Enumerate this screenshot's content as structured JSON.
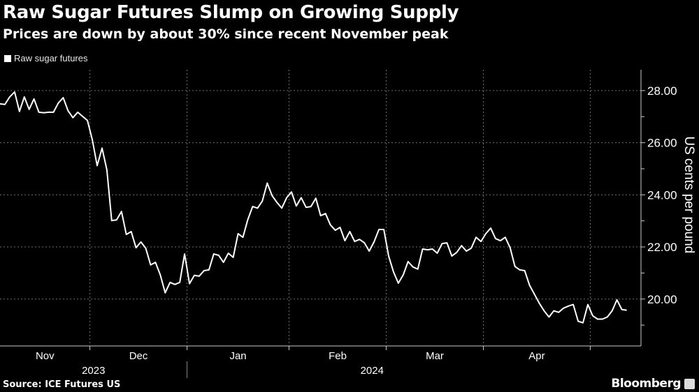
{
  "header": {
    "title": "Raw Sugar Futures Slump on Growing Supply",
    "subtitle": "Prices are down by about 30% since recent November peak"
  },
  "footer": {
    "source": "Source: ICE Futures US",
    "brand": "Bloomberg"
  },
  "colors": {
    "background": "#000000",
    "line": "#ffffff",
    "grid": "#6e6e6e",
    "text": "#ffffff"
  },
  "chart_data": {
    "type": "line",
    "title": "Raw Sugar Futures Slump on Growing Supply",
    "subtitle": "Prices are down by about 30% since recent November peak",
    "ylabel": "US cents per pound",
    "xlabel": "",
    "ylim": [
      18.2,
      28.8
    ],
    "y_axis_side": "right",
    "yticks": [
      "20.00",
      "22.00",
      "24.00",
      "26.00",
      "28.00"
    ],
    "x_month_labels": [
      "Nov",
      "Dec",
      "Jan",
      "Feb",
      "Mar",
      "Apr"
    ],
    "x_year_labels": [
      "2023",
      "2024"
    ],
    "grid": true,
    "legend_position": "top-left",
    "series": [
      {
        "name": "Raw sugar futures",
        "points": [
          [
            "2023-11-03",
            27.49
          ],
          [
            "2023-11-06",
            27.47
          ],
          [
            "2023-11-07",
            27.76
          ],
          [
            "2023-11-08",
            27.95
          ],
          [
            "2023-11-09",
            27.2
          ],
          [
            "2023-11-10",
            27.76
          ],
          [
            "2023-11-13",
            27.28
          ],
          [
            "2023-11-14",
            27.68
          ],
          [
            "2023-11-15",
            27.17
          ],
          [
            "2023-11-16",
            27.15
          ],
          [
            "2023-11-17",
            27.17
          ],
          [
            "2023-11-20",
            27.17
          ],
          [
            "2023-11-21",
            27.52
          ],
          [
            "2023-11-22",
            27.73
          ],
          [
            "2023-11-24",
            27.23
          ],
          [
            "2023-11-27",
            26.96
          ],
          [
            "2023-11-28",
            27.17
          ],
          [
            "2023-11-29",
            27.01
          ],
          [
            "2023-11-30",
            26.85
          ],
          [
            "2023-12-01",
            26.11
          ],
          [
            "2023-12-04",
            25.12
          ],
          [
            "2023-12-05",
            25.79
          ],
          [
            "2023-12-06",
            24.96
          ],
          [
            "2023-12-07",
            23.01
          ],
          [
            "2023-12-08",
            23.04
          ],
          [
            "2023-12-11",
            23.36
          ],
          [
            "2023-12-12",
            22.48
          ],
          [
            "2023-12-13",
            22.59
          ],
          [
            "2023-12-14",
            21.97
          ],
          [
            "2023-12-15",
            22.19
          ],
          [
            "2023-12-18",
            21.95
          ],
          [
            "2023-12-19",
            21.31
          ],
          [
            "2023-12-20",
            21.41
          ],
          [
            "2023-12-21",
            20.93
          ],
          [
            "2023-12-22",
            20.24
          ],
          [
            "2023-12-26",
            20.64
          ],
          [
            "2023-12-27",
            20.56
          ],
          [
            "2023-12-28",
            20.64
          ],
          [
            "2023-12-29",
            21.73
          ],
          [
            "2024-01-02",
            20.59
          ],
          [
            "2024-01-03",
            20.91
          ],
          [
            "2024-01-04",
            20.88
          ],
          [
            "2024-01-05",
            21.09
          ],
          [
            "2024-01-08",
            21.12
          ],
          [
            "2024-01-09",
            21.73
          ],
          [
            "2024-01-10",
            21.68
          ],
          [
            "2024-01-11",
            21.41
          ],
          [
            "2024-01-12",
            21.76
          ],
          [
            "2024-01-16",
            21.6
          ],
          [
            "2024-01-17",
            22.51
          ],
          [
            "2024-01-18",
            22.37
          ],
          [
            "2024-01-19",
            23.04
          ],
          [
            "2024-01-22",
            23.55
          ],
          [
            "2024-01-23",
            23.49
          ],
          [
            "2024-01-24",
            23.76
          ],
          [
            "2024-01-25",
            24.45
          ],
          [
            "2024-01-26",
            23.97
          ],
          [
            "2024-01-29",
            23.71
          ],
          [
            "2024-01-30",
            23.49
          ],
          [
            "2024-01-31",
            23.89
          ],
          [
            "2024-02-01",
            24.11
          ],
          [
            "2024-02-02",
            23.57
          ],
          [
            "2024-02-05",
            23.89
          ],
          [
            "2024-02-06",
            23.52
          ],
          [
            "2024-02-07",
            23.55
          ],
          [
            "2024-02-08",
            23.87
          ],
          [
            "2024-02-09",
            23.2
          ],
          [
            "2024-02-12",
            23.28
          ],
          [
            "2024-02-13",
            22.85
          ],
          [
            "2024-02-14",
            22.64
          ],
          [
            "2024-02-15",
            22.75
          ],
          [
            "2024-02-16",
            22.24
          ],
          [
            "2024-02-20",
            22.59
          ],
          [
            "2024-02-21",
            22.21
          ],
          [
            "2024-02-22",
            22.29
          ],
          [
            "2024-02-23",
            22.16
          ],
          [
            "2024-02-26",
            21.84
          ],
          [
            "2024-02-27",
            22.19
          ],
          [
            "2024-02-28",
            22.67
          ],
          [
            "2024-02-29",
            22.67
          ],
          [
            "2024-03-01",
            21.65
          ],
          [
            "2024-03-04",
            21.04
          ],
          [
            "2024-03-05",
            20.61
          ],
          [
            "2024-03-06",
            20.93
          ],
          [
            "2024-03-07",
            21.44
          ],
          [
            "2024-03-08",
            21.23
          ],
          [
            "2024-03-11",
            21.15
          ],
          [
            "2024-03-12",
            21.92
          ],
          [
            "2024-03-13",
            21.89
          ],
          [
            "2024-03-14",
            21.92
          ],
          [
            "2024-03-15",
            21.76
          ],
          [
            "2024-03-18",
            22.13
          ],
          [
            "2024-03-19",
            22.16
          ],
          [
            "2024-03-20",
            21.65
          ],
          [
            "2024-03-21",
            21.79
          ],
          [
            "2024-03-22",
            22.05
          ],
          [
            "2024-03-25",
            21.84
          ],
          [
            "2024-03-26",
            21.95
          ],
          [
            "2024-03-27",
            22.37
          ],
          [
            "2024-03-28",
            22.21
          ],
          [
            "2024-04-01",
            22.51
          ],
          [
            "2024-04-02",
            22.72
          ],
          [
            "2024-04-03",
            22.32
          ],
          [
            "2024-04-04",
            22.24
          ],
          [
            "2024-04-05",
            22.37
          ],
          [
            "2024-04-08",
            21.97
          ],
          [
            "2024-04-09",
            21.25
          ],
          [
            "2024-04-10",
            21.12
          ],
          [
            "2024-04-11",
            21.09
          ],
          [
            "2024-04-12",
            20.53
          ],
          [
            "2024-04-15",
            20.19
          ],
          [
            "2024-04-16",
            19.84
          ],
          [
            "2024-04-17",
            19.55
          ],
          [
            "2024-04-18",
            19.31
          ],
          [
            "2024-04-19",
            19.55
          ],
          [
            "2024-04-22",
            19.49
          ],
          [
            "2024-04-23",
            19.65
          ],
          [
            "2024-04-24",
            19.73
          ],
          [
            "2024-04-25",
            19.79
          ],
          [
            "2024-04-26",
            19.15
          ],
          [
            "2024-04-29",
            19.09
          ],
          [
            "2024-04-30",
            19.79
          ],
          [
            "2024-05-01",
            19.36
          ],
          [
            "2024-05-02",
            19.23
          ],
          [
            "2024-05-03",
            19.23
          ],
          [
            "2024-05-06",
            19.31
          ],
          [
            "2024-05-07",
            19.55
          ],
          [
            "2024-05-08",
            19.97
          ],
          [
            "2024-05-09",
            19.6
          ],
          [
            "2024-05-10",
            19.57
          ]
        ]
      }
    ]
  }
}
